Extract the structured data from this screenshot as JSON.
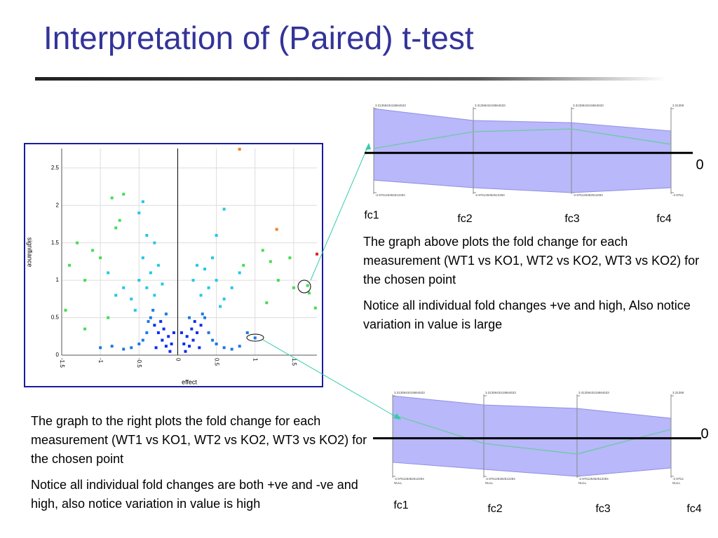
{
  "title": "Interpretation of  (Paired) t-test",
  "paragraphs_right": [
    "The graph above plots the fold change for each measurement (WT1 vs KO1, WT2 vs KO2, WT3 vs KO2) for the chosen point",
    "Notice all individual fold changes +ve and high, Also notice variation in value is large"
  ],
  "paragraphs_left": [
    "The graph to the right plots the fold change for each measurement (WT1 vs KO1, WT2 vs KO2, WT3 vs KO2) for the chosen point",
    "Notice all individual fold changes are both +ve and -ve and high, also notice variation in value is high"
  ],
  "chart_data": [
    {
      "type": "scatter",
      "x_label": "effect",
      "y_label": "signifiance",
      "xlim": [
        -1.5,
        1.8
      ],
      "ylim": [
        0,
        2.76
      ],
      "xticks": [
        -1.5,
        -1,
        -0.5,
        0,
        0.5,
        1,
        1.5
      ],
      "yticks": [
        0,
        0.5,
        1,
        1.5,
        2,
        2.5
      ],
      "grid": true,
      "series": [
        {
          "color": "#0a2cf0",
          "x": [
            -0.1,
            -0.15,
            -0.2,
            -0.25,
            -0.3,
            -0.12,
            -0.18,
            -0.08,
            -0.28,
            -0.05,
            -0.22,
            0.1,
            0.15,
            0.2,
            0.25,
            0.3,
            0.12,
            0.18,
            0.08,
            0.28,
            0.05,
            0.22
          ],
          "y": [
            0.05,
            0.12,
            0.2,
            0.3,
            0.4,
            0.25,
            0.35,
            0.15,
            0.1,
            0.3,
            0.45,
            0.05,
            0.12,
            0.2,
            0.3,
            0.4,
            0.25,
            0.35,
            0.15,
            0.1,
            0.3,
            0.45
          ]
        },
        {
          "color": "#1a78e6",
          "x": [
            -0.35,
            -0.4,
            -0.45,
            -0.5,
            -0.6,
            -0.7,
            -0.32,
            -0.15,
            -0.38,
            -0.85,
            -1.0,
            0.35,
            0.4,
            0.45,
            0.5,
            0.6,
            0.7,
            0.32,
            0.15,
            1.0,
            0.9,
            0.8
          ],
          "y": [
            0.5,
            0.3,
            0.2,
            0.15,
            0.1,
            0.08,
            0.6,
            0.55,
            0.45,
            0.12,
            0.1,
            0.5,
            0.3,
            0.2,
            0.15,
            0.1,
            0.08,
            0.55,
            0.5,
            0.23,
            0.3,
            0.12
          ]
        },
        {
          "color": "#22c8e8",
          "x": [
            -0.3,
            -0.4,
            -0.5,
            -0.35,
            -0.6,
            -0.25,
            -0.45,
            -0.55,
            -0.7,
            -0.2,
            -0.4,
            -0.3,
            -0.5,
            -0.45,
            0.3,
            0.4,
            0.5,
            0.35,
            0.6,
            0.25,
            0.45,
            0.55,
            0.7,
            0.2,
            0.5,
            0.6,
            0.8,
            -0.8,
            -0.9
          ],
          "y": [
            0.8,
            0.9,
            1.0,
            1.1,
            0.75,
            1.2,
            1.3,
            0.6,
            0.9,
            0.95,
            1.6,
            1.5,
            1.9,
            2.05,
            0.8,
            0.9,
            1.0,
            1.15,
            0.75,
            1.2,
            1.3,
            0.65,
            0.9,
            1.0,
            1.6,
            1.95,
            1.1,
            0.8,
            1.1
          ]
        },
        {
          "color": "#44dd55",
          "x": [
            -1.1,
            -1.2,
            -0.8,
            -0.75,
            -0.85,
            -0.7,
            -1.4,
            -1.45,
            -1.3,
            -1.0,
            -0.9,
            -1.2,
            1.1,
            1.3,
            1.5,
            1.7,
            1.68,
            1.78,
            1.2,
            1.45,
            0.85,
            1.15
          ],
          "y": [
            1.4,
            1.0,
            1.7,
            1.8,
            2.1,
            2.15,
            1.2,
            0.6,
            1.5,
            1.3,
            0.5,
            0.35,
            1.4,
            1.0,
            0.9,
            0.83,
            0.93,
            0.63,
            1.25,
            1.3,
            1.2,
            0.7
          ]
        },
        {
          "color": "#f08020",
          "x": [
            0.8,
            1.28
          ],
          "y": [
            2.75,
            1.68
          ]
        },
        {
          "color": "#e02020",
          "x": [
            1.8
          ],
          "y": [
            1.35
          ]
        }
      ]
    },
    {
      "type": "parallel",
      "categories": [
        "fc1",
        "fc2",
        "fc3",
        "fc4"
      ],
      "upper": [
        3.31,
        2.42,
        2.26,
        1.64
      ],
      "lower": [
        -2.04,
        -2.61,
        -2.975,
        -2.61
      ],
      "values": [
        0.33,
        1.58,
        1.79,
        0.64
      ],
      "ylim": [
        -2.975125362512294,
        3.313594341956453
      ],
      "yticks": [
        {
          "value": 3.313594341956453,
          "label": "3.3135943419564533"
        },
        {
          "value": -2.975125362512294,
          "label": "-2.975125362512294"
        }
      ],
      "reference": 0,
      "band_color": "#b8b8fa",
      "line_color": "#66cc99"
    },
    {
      "type": "parallel",
      "categories": [
        "fc1",
        "fc2",
        "fc3",
        "fc4"
      ],
      "upper": [
        3.31,
        2.6,
        2.33,
        1.56
      ],
      "lower": [
        -1.88,
        -2.43,
        -2.975,
        -2.32
      ],
      "values": [
        1.84,
        -0.41,
        -1.23,
        0.69
      ],
      "ylim": [
        -2.975125362512294,
        3.313594341956453
      ],
      "yticks": [
        {
          "value": 3.313594341956453,
          "label": "3.3135943419564533"
        },
        {
          "value": -2.975125362512294,
          "label": "-2.975125362512294"
        }
      ],
      "axis_notes": [
        "NULL",
        "NULL",
        "NULL",
        "NULL"
      ],
      "reference": 0,
      "band_color": "#b8b8fa",
      "line_color": "#66cc99"
    }
  ]
}
